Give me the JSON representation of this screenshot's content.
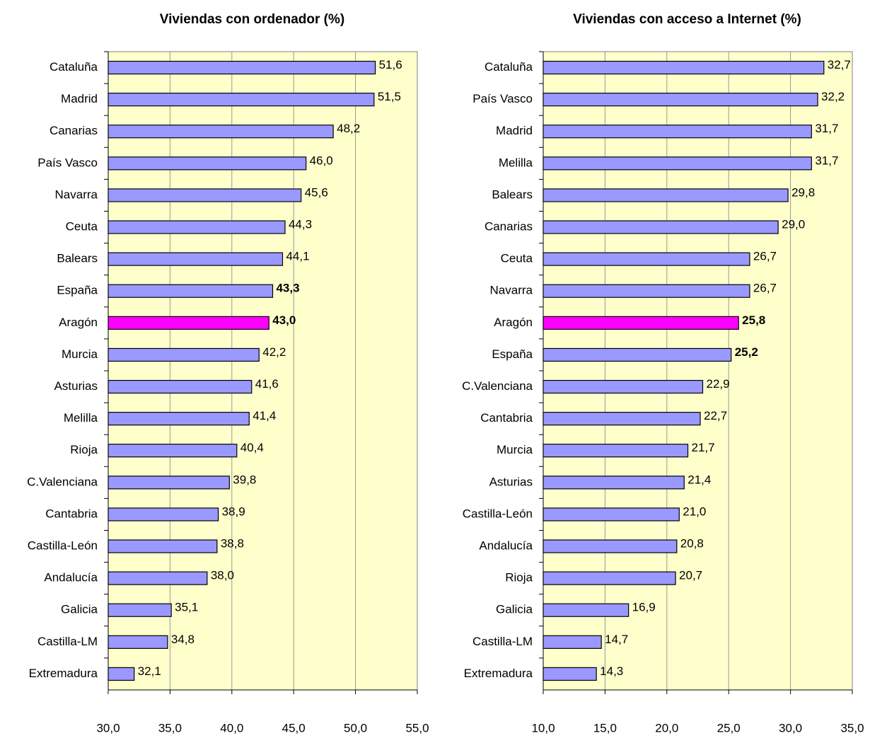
{
  "chart_data": [
    {
      "type": "barh",
      "title": "Viviendas con ordenador (%)",
      "categories": [
        "Cataluña",
        "Madrid",
        "Canarias",
        "País Vasco",
        "Navarra",
        "Ceuta",
        "Balears",
        "España",
        "Aragón",
        "Murcia",
        "Asturias",
        "Melilla",
        "Rioja",
        "C.Valenciana",
        "Cantabria",
        "Castilla-León",
        "Andalucía",
        "Galicia",
        "Castilla-LM",
        "Extremadura"
      ],
      "values": [
        51.6,
        51.5,
        48.2,
        46.0,
        45.6,
        44.3,
        44.1,
        43.3,
        43.0,
        42.2,
        41.6,
        41.4,
        40.4,
        39.8,
        38.9,
        38.8,
        38.0,
        35.1,
        34.8,
        32.1
      ],
      "value_labels": [
        "51,6",
        "51,5",
        "48,2",
        "46,0",
        "45,6",
        "44,3",
        "44,1",
        "43,3",
        "43,0",
        "42,2",
        "41,6",
        "41,4",
        "40,4",
        "39,8",
        "38,9",
        "38,8",
        "38,0",
        "35,1",
        "34,8",
        "32,1"
      ],
      "colors": [
        "#9999ff",
        "#9999ff",
        "#9999ff",
        "#9999ff",
        "#9999ff",
        "#9999ff",
        "#9999ff",
        "#9999ff",
        "#ff00ff",
        "#9999ff",
        "#9999ff",
        "#9999ff",
        "#9999ff",
        "#9999ff",
        "#9999ff",
        "#9999ff",
        "#9999ff",
        "#9999ff",
        "#9999ff",
        "#9999ff"
      ],
      "value_label_colors": [
        "#000000",
        "#000000",
        "#000000",
        "#000000",
        "#000000",
        "#000000",
        "#000000",
        "#000000",
        "#ff00ff",
        "#000000",
        "#000000",
        "#000000",
        "#000000",
        "#000000",
        "#000000",
        "#000000",
        "#000000",
        "#000000",
        "#000000",
        "#000000"
      ],
      "value_label_bold": [
        false,
        false,
        false,
        false,
        false,
        false,
        false,
        true,
        true,
        false,
        false,
        false,
        false,
        false,
        false,
        false,
        false,
        false,
        false,
        false
      ],
      "xlim": [
        30,
        55
      ],
      "xticks": [
        {
          "value": 30,
          "label": "30,0"
        },
        {
          "value": 35,
          "label": "35,0"
        },
        {
          "value": 40,
          "label": "40,0"
        },
        {
          "value": 45,
          "label": "45,0"
        },
        {
          "value": 50,
          "label": "50,0"
        },
        {
          "value": 55,
          "label": "55,0"
        }
      ],
      "grid": true,
      "background": "#ffffcc"
    },
    {
      "type": "barh",
      "title": "Viviendas con acceso a Internet (%)",
      "categories": [
        "Cataluña",
        "País Vasco",
        "Madrid",
        "Melilla",
        "Balears",
        "Canarias",
        "Ceuta",
        "Navarra",
        "Aragón",
        "España",
        "C.Valenciana",
        "Cantabria",
        "Murcia",
        "Asturias",
        "Castilla-León",
        "Andalucía",
        "Rioja",
        "Galicia",
        "Castilla-LM",
        "Extremadura"
      ],
      "values": [
        32.7,
        32.2,
        31.7,
        31.7,
        29.8,
        29.0,
        26.7,
        26.7,
        25.8,
        25.2,
        22.9,
        22.7,
        21.7,
        21.4,
        21.0,
        20.8,
        20.7,
        16.9,
        14.7,
        14.3
      ],
      "value_labels": [
        "32,7",
        "32,2",
        "31,7",
        "31,7",
        "29,8",
        "29,0",
        "26,7",
        "26,7",
        "25,8",
        "25,2",
        "22,9",
        "22,7",
        "21,7",
        "21,4",
        "21,0",
        "20,8",
        "20,7",
        "16,9",
        "14,7",
        "14,3"
      ],
      "colors": [
        "#9999ff",
        "#9999ff",
        "#9999ff",
        "#9999ff",
        "#9999ff",
        "#9999ff",
        "#9999ff",
        "#9999ff",
        "#ff00ff",
        "#9999ff",
        "#9999ff",
        "#9999ff",
        "#9999ff",
        "#9999ff",
        "#9999ff",
        "#9999ff",
        "#9999ff",
        "#9999ff",
        "#9999ff",
        "#9999ff"
      ],
      "value_label_colors": [
        "#000000",
        "#000000",
        "#000000",
        "#000000",
        "#000000",
        "#000000",
        "#000000",
        "#000000",
        "#ff00ff",
        "#000000",
        "#000000",
        "#000000",
        "#000000",
        "#000000",
        "#000000",
        "#000000",
        "#000000",
        "#000000",
        "#000000",
        "#000000"
      ],
      "value_label_bold": [
        false,
        false,
        false,
        false,
        false,
        false,
        false,
        false,
        true,
        true,
        false,
        false,
        false,
        false,
        false,
        false,
        false,
        false,
        false,
        false
      ],
      "xlim": [
        10,
        35
      ],
      "xticks": [
        {
          "value": 10,
          "label": "10,0"
        },
        {
          "value": 15,
          "label": "15,0"
        },
        {
          "value": 20,
          "label": "20,0"
        },
        {
          "value": 25,
          "label": "25,0"
        },
        {
          "value": 30,
          "label": "30,0"
        },
        {
          "value": 35,
          "label": "35,0"
        }
      ],
      "grid": true,
      "background": "#ffffcc"
    }
  ]
}
